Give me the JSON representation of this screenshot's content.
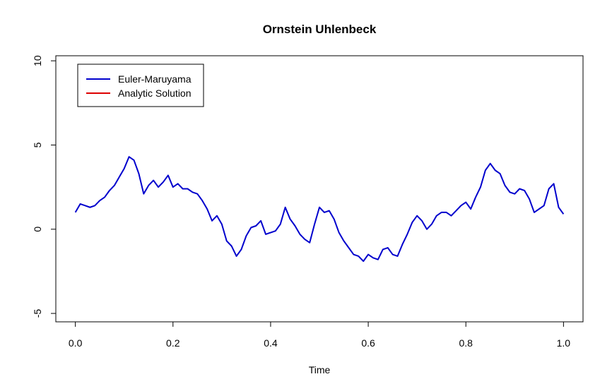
{
  "chart_data": {
    "type": "line",
    "title": "Ornstein Uhlenbeck",
    "xlabel": "Time",
    "ylabel": "",
    "xlim": [
      0,
      1
    ],
    "ylim": [
      -5.5,
      10.3
    ],
    "xticks": [
      "0.0",
      "0.2",
      "0.4",
      "0.6",
      "0.8",
      "1.0"
    ],
    "xtick_values": [
      0,
      0.2,
      0.4,
      0.6,
      0.8,
      1.0
    ],
    "yticks": [
      "-5",
      "0",
      "5",
      "10"
    ],
    "ytick_values": [
      -5,
      0,
      5,
      10
    ],
    "grid": false,
    "legend_position": "top-left",
    "series": [
      {
        "name": "Euler-Maruyama",
        "color": "#0000CD",
        "x": [
          0.0,
          0.01,
          0.02,
          0.03,
          0.04,
          0.05,
          0.06,
          0.07,
          0.08,
          0.09,
          0.1,
          0.11,
          0.12,
          0.13,
          0.14,
          0.15,
          0.16,
          0.17,
          0.18,
          0.19,
          0.2,
          0.21,
          0.22,
          0.23,
          0.24,
          0.25,
          0.26,
          0.27,
          0.28,
          0.29,
          0.3,
          0.31,
          0.32,
          0.33,
          0.34,
          0.35,
          0.36,
          0.37,
          0.38,
          0.39,
          0.4,
          0.41,
          0.42,
          0.43,
          0.44,
          0.45,
          0.46,
          0.47,
          0.48,
          0.49,
          0.5,
          0.51,
          0.52,
          0.53,
          0.54,
          0.55,
          0.56,
          0.57,
          0.58,
          0.59,
          0.6,
          0.61,
          0.62,
          0.63,
          0.64,
          0.65,
          0.66,
          0.67,
          0.68,
          0.69,
          0.7,
          0.71,
          0.72,
          0.73,
          0.74,
          0.75,
          0.76,
          0.77,
          0.78,
          0.79,
          0.8,
          0.81,
          0.82,
          0.83,
          0.84,
          0.85,
          0.86,
          0.87,
          0.88,
          0.89,
          0.9,
          0.91,
          0.92,
          0.93,
          0.94,
          0.95,
          0.96,
          0.97,
          0.98,
          0.99,
          1.0
        ],
        "values": [
          1.0,
          1.5,
          1.4,
          1.3,
          1.4,
          1.7,
          1.9,
          2.3,
          2.6,
          3.1,
          3.6,
          4.3,
          4.1,
          3.3,
          2.1,
          2.6,
          2.9,
          2.5,
          2.8,
          3.2,
          2.5,
          2.7,
          2.4,
          2.4,
          2.2,
          2.1,
          1.7,
          1.2,
          0.5,
          0.8,
          0.3,
          -0.7,
          -1.0,
          -1.6,
          -1.2,
          -0.4,
          0.1,
          0.2,
          0.5,
          -0.3,
          -0.2,
          -0.1,
          0.3,
          1.3,
          0.6,
          0.2,
          -0.3,
          -0.6,
          -0.8,
          0.3,
          1.3,
          1.0,
          1.1,
          0.6,
          -0.2,
          -0.7,
          -1.1,
          -1.5,
          -1.6,
          -1.9,
          -1.5,
          -1.7,
          -1.8,
          -1.2,
          -1.1,
          -1.5,
          -1.6,
          -0.9,
          -0.3,
          0.4,
          0.8,
          0.5,
          0.0,
          0.3,
          0.8,
          1.0,
          1.0,
          0.8,
          1.1,
          1.4,
          1.6,
          1.2,
          1.9,
          2.5,
          3.5,
          3.9,
          3.5,
          3.3,
          2.6,
          2.2,
          2.1,
          2.4,
          2.3,
          1.8,
          1.0,
          1.2,
          1.4,
          2.4,
          2.7,
          1.3,
          0.9
        ]
      },
      {
        "name": "Analytic Solution",
        "color": "#DD0000",
        "x": [],
        "values": []
      }
    ]
  }
}
